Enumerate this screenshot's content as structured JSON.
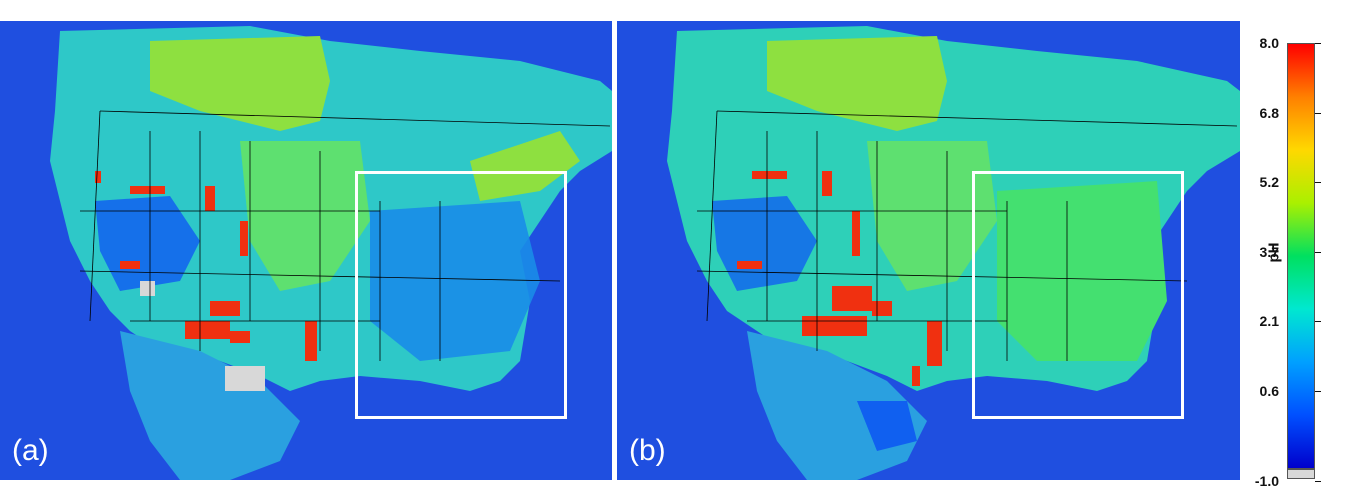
{
  "panels": [
    {
      "label": "(a)"
    },
    {
      "label": "(b)"
    }
  ],
  "colorbar": {
    "title": "pH",
    "ticks": [
      "8.0",
      "6.8",
      "5.2",
      "3.7",
      "2.1",
      "0.6",
      "-1.0"
    ],
    "colors": [
      "#ff0000",
      "#ff8000",
      "#ffd800",
      "#aaf000",
      "#00e060",
      "#00e8d0",
      "#00a0ff",
      "#0050ff",
      "#0000cc"
    ],
    "missing_color": "#d8d8d8"
  },
  "colors": {
    "ocean": "#1f4fe0",
    "land_base": "#1ec8e0",
    "canada_green": "#7fe040",
    "hotspot_red": "#f03010",
    "low_blue": "#1060f0",
    "missing": "#d8d8d8",
    "boundaries": "#000000",
    "box": "#ffffff"
  }
}
